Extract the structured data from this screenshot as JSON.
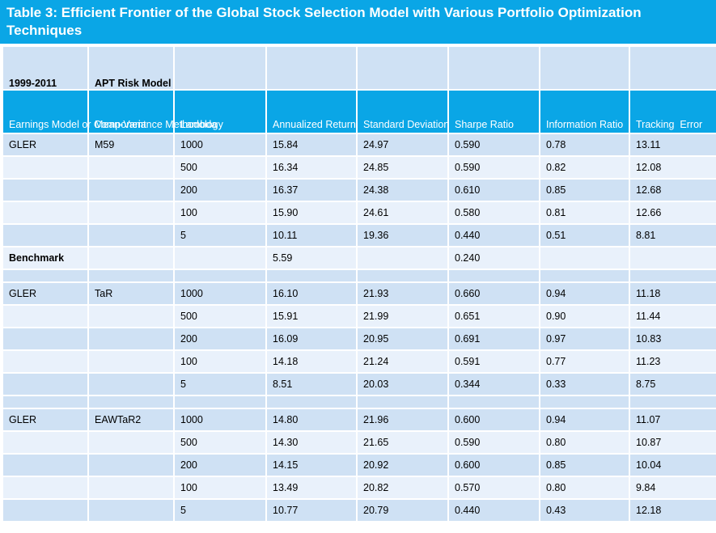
{
  "title": "Table 3: Efficient Frontier of the Global Stock Selection Model with Various Portfolio Optimization Techniques",
  "top_labels": {
    "period": "1999-2011",
    "risk_model": "APT Risk Model"
  },
  "headers": [
    "Earnings Model or Component",
    "Mean-Variance Methodology",
    "Lambda",
    "Annualized Return",
    "Standard Deviation",
    "Sharpe Ratio",
    "Information Ratio",
    "Tracking  Error"
  ],
  "groups": [
    {
      "model": "GLER",
      "method": "M59",
      "rows": [
        [
          "1000",
          "15.84",
          "24.97",
          "0.590",
          "0.78",
          "13.11"
        ],
        [
          "500",
          "16.34",
          "24.85",
          "0.590",
          "0.82",
          "12.08"
        ],
        [
          "200",
          "16.37",
          "24.38",
          "0.610",
          "0.85",
          "12.68"
        ],
        [
          "100",
          "15.90",
          "24.61",
          "0.580",
          "0.81",
          "12.66"
        ],
        [
          "5",
          "10.11",
          "19.36",
          "0.440",
          "0.51",
          "8.81"
        ]
      ]
    },
    {
      "model": "GLER",
      "method": "TaR",
      "rows": [
        [
          "1000",
          "16.10",
          "21.93",
          "0.660",
          "0.94",
          "11.18"
        ],
        [
          "500",
          "15.91",
          "21.99",
          "0.651",
          "0.90",
          "11.44"
        ],
        [
          "200",
          "16.09",
          "20.95",
          "0.691",
          "0.97",
          "10.83"
        ],
        [
          "100",
          "14.18",
          "21.24",
          "0.591",
          "0.77",
          "11.23"
        ],
        [
          "5",
          "8.51",
          "20.03",
          "0.344",
          "0.33",
          "8.75"
        ]
      ]
    },
    {
      "model": "GLER",
      "method": "EAWTaR2",
      "rows": [
        [
          "1000",
          "14.80",
          "21.96",
          "0.600",
          "0.94",
          "11.07"
        ],
        [
          "500",
          "14.30",
          "21.65",
          "0.590",
          "0.80",
          "10.87"
        ],
        [
          "200",
          "14.15",
          "20.92",
          "0.600",
          "0.85",
          "10.04"
        ],
        [
          "100",
          "13.49",
          "20.82",
          "0.570",
          "0.80",
          "9.84"
        ],
        [
          "5",
          "10.77",
          "20.79",
          "0.440",
          "0.43",
          "12.18"
        ]
      ]
    }
  ],
  "benchmark": {
    "label": "Benchmark",
    "return": "5.59",
    "sharpe": "0.240"
  },
  "colors": {
    "header_blue": "#0aa6e6",
    "row_light": "#cfe1f4",
    "row_pale": "#e9f1fb"
  }
}
